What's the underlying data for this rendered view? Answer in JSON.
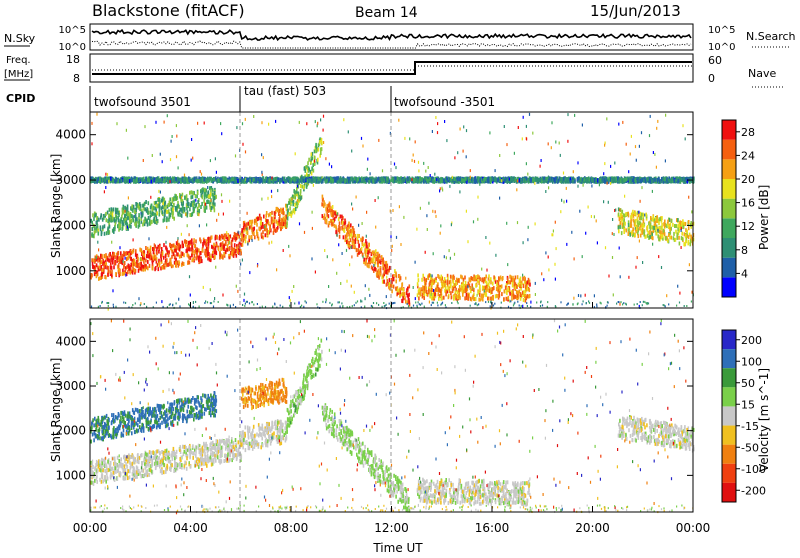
{
  "header": {
    "station": "Blackstone (fitACF)",
    "beam": "Beam 14",
    "date": "15/Jun/2013"
  },
  "noise_panel": {
    "left_label": "N.Sky",
    "right_label": "N.Search",
    "left_ticks": [
      "10^5",
      "10^0"
    ],
    "right_ticks": [
      "10^5",
      "10^0"
    ]
  },
  "freq_panel": {
    "left_label_1": "Freq.",
    "left_label_2": "[MHz]",
    "right_label": "Nave",
    "left_ticks": [
      "18",
      "8"
    ],
    "right_ticks": [
      "60",
      "0"
    ]
  },
  "cpid": {
    "label": "CPID",
    "segments": [
      {
        "name": "twofsound 3501",
        "start_hour": 0,
        "end_hour": 6
      },
      {
        "name": "tau (fast) 503",
        "start_hour": 6,
        "end_hour": 12
      },
      {
        "name": "twofsound -3501",
        "start_hour": 12,
        "end_hour": 24
      }
    ]
  },
  "time_axis": {
    "label": "Time UT",
    "ticks": [
      "00:00",
      "04:00",
      "08:00",
      "12:00",
      "16:00",
      "20:00",
      "00:00"
    ]
  },
  "chart_data": [
    {
      "type": "heatmap",
      "name": "power",
      "ylabel": "Slant Range [km]",
      "yticks": [
        1000,
        2000,
        3000,
        4000
      ],
      "ylim": [
        180,
        4500
      ],
      "xlim": [
        0,
        24
      ],
      "colorbar_label": "Power [dB]",
      "colorbar_ticks": [
        4,
        8,
        12,
        16,
        20,
        24,
        28
      ],
      "colorbar_range": [
        0,
        30
      ],
      "bands": [
        {
          "start_hour": 0.0,
          "end_hour": 6.0,
          "range_start_km": 1050,
          "range_end_km": 1600,
          "level": 26
        },
        {
          "start_hour": 0.0,
          "end_hour": 5.0,
          "range_start_km": 2000,
          "range_end_km": 2600,
          "level": 12
        },
        {
          "start_hour": 6.0,
          "end_hour": 7.8,
          "range_start_km": 1800,
          "range_end_km": 2200,
          "level": 24
        },
        {
          "start_hour": 7.8,
          "end_hour": 9.2,
          "range_start_km": 2200,
          "range_end_km": 3800,
          "level": 14
        },
        {
          "start_hour": 9.2,
          "end_hour": 12.7,
          "range_start_km": 2400,
          "range_end_km": 400,
          "level": 24
        },
        {
          "start_hour": 13.0,
          "end_hour": 17.5,
          "range_start_km": 650,
          "range_end_km": 600,
          "level": 22
        },
        {
          "start_hour": 21.0,
          "end_hour": 24.0,
          "range_start_km": 2100,
          "range_end_km": 1800,
          "level": 18
        },
        {
          "start_hour": 0.0,
          "end_hour": 24.0,
          "range_start_km": 3000,
          "range_end_km": 3000,
          "level": 8
        }
      ]
    },
    {
      "type": "heatmap",
      "name": "velocity",
      "ylabel": "Slant Range [km]",
      "yticks": [
        1000,
        2000,
        3000,
        4000
      ],
      "ylim": [
        180,
        4500
      ],
      "xlim": [
        0,
        24
      ],
      "colorbar_label": "Velocity [m s^-1]",
      "colorbar_ticks": [
        200,
        100,
        50,
        15,
        -15,
        -50,
        -100,
        -200
      ],
      "bands": [
        {
          "start_hour": 0.0,
          "end_hour": 6.0,
          "range_start_km": 1050,
          "range_end_km": 1600,
          "level": 0
        },
        {
          "start_hour": 0.0,
          "end_hour": 5.0,
          "range_start_km": 2000,
          "range_end_km": 2600,
          "level": 120
        },
        {
          "start_hour": 6.0,
          "end_hour": 7.8,
          "range_start_km": 2700,
          "range_end_km": 2900,
          "level": -80
        },
        {
          "start_hour": 6.0,
          "end_hour": 7.8,
          "range_start_km": 1800,
          "range_end_km": 2000,
          "level": 0
        },
        {
          "start_hour": 7.8,
          "end_hour": 9.2,
          "range_start_km": 2200,
          "range_end_km": 3800,
          "level": 40
        },
        {
          "start_hour": 9.2,
          "end_hour": 12.7,
          "range_start_km": 2400,
          "range_end_km": 400,
          "level": 30
        },
        {
          "start_hour": 13.0,
          "end_hour": 17.5,
          "range_start_km": 650,
          "range_end_km": 600,
          "level": 0
        },
        {
          "start_hour": 21.0,
          "end_hour": 24.0,
          "range_start_km": 2100,
          "range_end_km": 1800,
          "level": 0
        }
      ]
    }
  ],
  "colors": {
    "power_scale": [
      "#0000ff",
      "#1e5fa8",
      "#2e8f74",
      "#3fa85e",
      "#8cc83c",
      "#e8e21e",
      "#f5a014",
      "#f56010",
      "#f01010"
    ],
    "velocity_scale": [
      "#2828c8",
      "#2e6fb8",
      "#3a9a3a",
      "#7ad04a",
      "#c8c8c8",
      "#f0c020",
      "#f08010",
      "#f04010",
      "#e01010"
    ]
  }
}
